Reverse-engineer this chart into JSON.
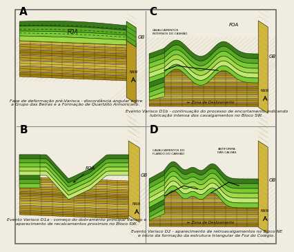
{
  "background_color": "#f0ede0",
  "panel_label_fontsize": 11,
  "caption_A": "Fase de deformação pré-Varisca - discordância angular entre\na Grupo das Beiras e a Formação de Quartzito Armoricano.",
  "caption_B": "Evento Varisco D1a - começo do dobramento principal Varisco e\naparecimento de recalcamentos proximos no Bloco SW.",
  "caption_C": "Evento Varisco D1b - continuação do processo de encurtamento indicando\nlubricação intensa dos cavalgamentos no Bloco SW.",
  "caption_D": "Evento Varisco D2 - aparecimento de retroavalgamentos no Bloco NE\ne início da formação da estrutura triangular de Foz do Colégio.",
  "caption_fontsize": 4.5,
  "green_dark": "#3a7a1a",
  "green_mid": "#5aaa25",
  "green_light": "#7aca35",
  "green_bright": "#a0d848",
  "green_pale": "#c0e870",
  "tan_dark": "#a08010",
  "tan_mid": "#b89820",
  "tan_light": "#d0b840",
  "tan_pale": "#e8d060",
  "hatch_tan": "#b0901a",
  "black": "#111111",
  "gray_light": "#cccccc",
  "white": "#ffffff"
}
